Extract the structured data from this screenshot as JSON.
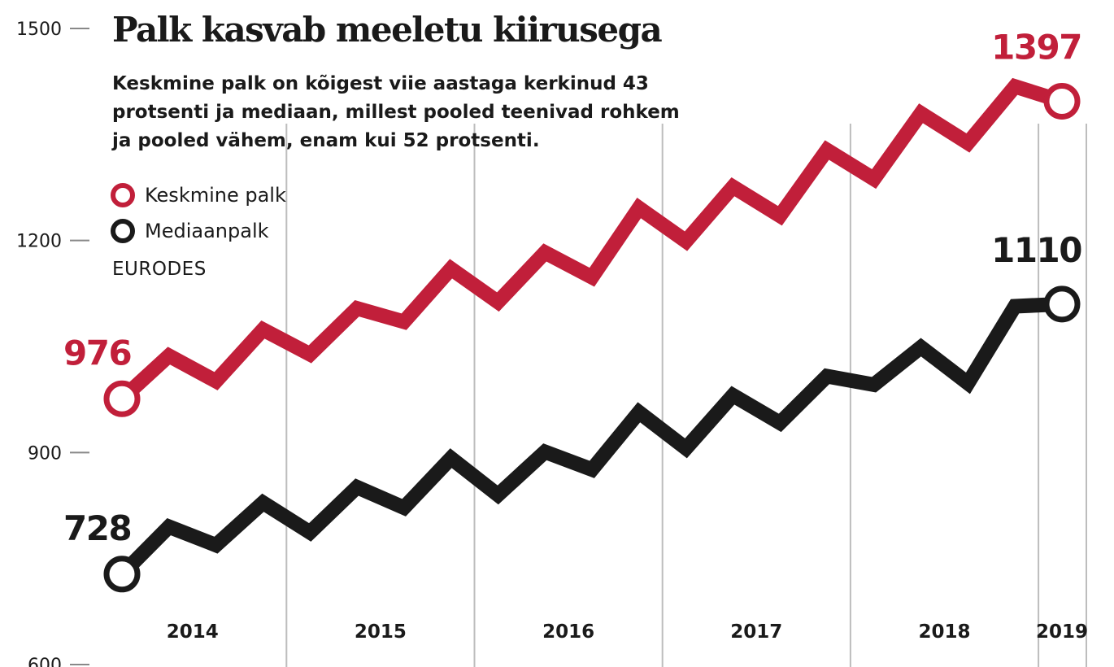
{
  "title": "Palk kasvab meeletu kiirusega",
  "subtitle": "Keskmine palk on kõigest viie aastaga kerkinud 43 protsenti ja mediaan, millest pooled teenivad rohkem ja pooled vähem, enam kui 52 protsenti.",
  "unit_label": "EURODES",
  "colors": {
    "average": "#c11f3a",
    "median": "#1a1a1a",
    "grid": "#bdbdbd",
    "axis": "#888888"
  },
  "legend": [
    {
      "label": "Keskmine palk",
      "color": "#c11f3a"
    },
    {
      "label": "Mediaanpalk",
      "color": "#1a1a1a"
    }
  ],
  "chart_data": {
    "type": "line",
    "title": "Palk kasvab meeletu kiirusega",
    "ylabel": "EURODES",
    "ylim": [
      600,
      1500
    ],
    "yticks": [
      1500,
      1200,
      900,
      600
    ],
    "x_labels": [
      "2014",
      "2015",
      "2016",
      "2017",
      "2018",
      "2019"
    ],
    "quarters_per_year": 4,
    "series": [
      {
        "name": "Keskmine palk",
        "color": "#c11f3a",
        "values": [
          976,
          1037,
          1001,
          1074,
          1039,
          1104,
          1085,
          1160,
          1113,
          1183,
          1148,
          1246,
          1199,
          1276,
          1235,
          1328,
          1287,
          1380,
          1338,
          1418,
          1397
        ],
        "first_label": "976",
        "last_label": "1397"
      },
      {
        "name": "Mediaanpalk",
        "color": "#1a1a1a",
        "values": [
          728,
          795,
          769,
          829,
          787,
          851,
          822,
          892,
          840,
          901,
          876,
          957,
          906,
          981,
          942,
          1008,
          996,
          1049,
          998,
          1107,
          1110
        ],
        "first_label": "728",
        "last_label": "1110"
      }
    ]
  }
}
